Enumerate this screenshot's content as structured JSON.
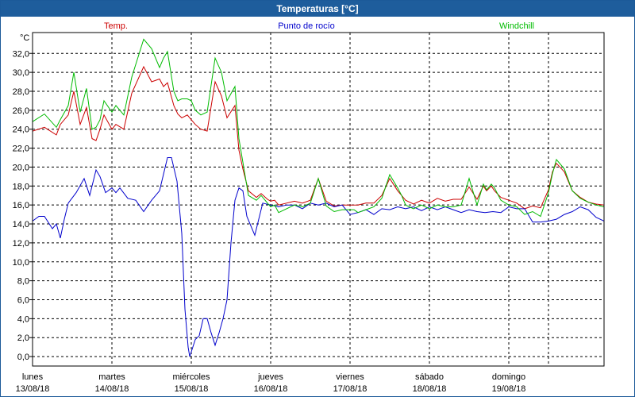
{
  "window": {
    "title": "Temperaturas [°C]"
  },
  "chart_data": {
    "type": "line",
    "title": "Temperaturas [°C]",
    "ylabel": "°C",
    "ylim": [
      -1,
      34.2
    ],
    "xlim": [
      0,
      7.2
    ],
    "y_ticks": [
      "32,0",
      "30,0",
      "28,0",
      "26,0",
      "24,0",
      "22,0",
      "20,0",
      "18,0",
      "16,0",
      "14,0",
      "12,0",
      "10,0",
      "8,0",
      "6,0",
      "4,0",
      "2,0",
      "0,0"
    ],
    "y_tick_values": [
      32,
      30,
      28,
      26,
      24,
      22,
      20,
      18,
      16,
      14,
      12,
      10,
      8,
      6,
      4,
      2,
      0
    ],
    "x_tick_positions": [
      0,
      1,
      2,
      3,
      4,
      5,
      6
    ],
    "x_ticks": [
      {
        "day": "lunes",
        "date": "13/08/18"
      },
      {
        "day": "martes",
        "date": "14/08/18"
      },
      {
        "day": "miércoles",
        "date": "15/08/18"
      },
      {
        "day": "jueves",
        "date": "16/08/18"
      },
      {
        "day": "viernes",
        "date": "17/08/18"
      },
      {
        "day": "sábado",
        "date": "18/08/18"
      },
      {
        "day": "domingo",
        "date": "19/08/18"
      }
    ],
    "grid": true,
    "legend": {
      "placement": "top"
    },
    "series": [
      {
        "name": "Temp.",
        "color": "#cc0000",
        "x": [
          0,
          0.15,
          0.3,
          0.35,
          0.45,
          0.52,
          0.6,
          0.68,
          0.75,
          0.8,
          0.85,
          0.9,
          1.0,
          1.05,
          1.15,
          1.25,
          1.4,
          1.5,
          1.6,
          1.65,
          1.7,
          1.78,
          1.83,
          1.88,
          1.95,
          2.0,
          2.05,
          2.12,
          2.2,
          2.3,
          2.38,
          2.45,
          2.55,
          2.6,
          2.65,
          2.72,
          2.82,
          2.88,
          2.96,
          3.0,
          3.05,
          3.1,
          3.2,
          3.3,
          3.4,
          3.5,
          3.6,
          3.7,
          3.8,
          3.9,
          4.0,
          4.05,
          4.1,
          4.2,
          4.3,
          4.4,
          4.5,
          4.6,
          4.65,
          4.7,
          4.8,
          4.9,
          5.0,
          5.1,
          5.2,
          5.3,
          5.4,
          5.5,
          5.6,
          5.68,
          5.72,
          5.78,
          5.82,
          5.9,
          6.0,
          6.1,
          6.2,
          6.3,
          6.4,
          6.5,
          6.55,
          6.6,
          6.7,
          6.8,
          6.9,
          7.0,
          7.1,
          7.2
        ],
        "values": [
          23.8,
          24.2,
          23.4,
          24.5,
          25.5,
          28.0,
          24.5,
          26.3,
          23.0,
          22.8,
          24.0,
          25.5,
          24.0,
          24.5,
          24.0,
          27.8,
          30.6,
          29.0,
          29.3,
          28.5,
          28.9,
          26.5,
          25.6,
          25.2,
          25.5,
          25.0,
          24.5,
          24.0,
          23.8,
          29.0,
          27.5,
          25.2,
          26.5,
          21.8,
          19.8,
          17.5,
          16.8,
          17.2,
          16.6,
          16.4,
          16.5,
          16.0,
          16.2,
          16.4,
          16.2,
          16.5,
          18.8,
          16.4,
          15.9,
          16.0,
          16.0,
          16.0,
          16.0,
          16.2,
          16.2,
          17.0,
          18.8,
          17.5,
          17.0,
          16.5,
          16.1,
          16.5,
          16.2,
          16.7,
          16.4,
          16.6,
          16.6,
          17.9,
          16.6,
          18.0,
          17.5,
          18.0,
          17.5,
          16.8,
          16.5,
          16.2,
          15.6,
          15.9,
          15.7,
          17.6,
          19.5,
          20.4,
          19.5,
          17.5,
          16.8,
          16.3,
          16.1,
          16.0
        ]
      },
      {
        "name": "Punto de rocío",
        "color": "#0000cc",
        "x": [
          0,
          0.08,
          0.15,
          0.25,
          0.3,
          0.35,
          0.4,
          0.45,
          0.55,
          0.65,
          0.72,
          0.8,
          0.85,
          0.92,
          1.0,
          1.05,
          1.1,
          1.2,
          1.3,
          1.4,
          1.5,
          1.6,
          1.7,
          1.75,
          1.82,
          1.88,
          1.92,
          1.96,
          1.98,
          2.0,
          2.05,
          2.1,
          2.15,
          2.2,
          2.25,
          2.3,
          2.35,
          2.4,
          2.45,
          2.5,
          2.55,
          2.6,
          2.65,
          2.7,
          2.8,
          2.9,
          3.0,
          3.1,
          3.2,
          3.3,
          3.4,
          3.5,
          3.6,
          3.7,
          3.8,
          3.9,
          4.0,
          4.1,
          4.2,
          4.3,
          4.4,
          4.5,
          4.6,
          4.7,
          4.8,
          4.9,
          5.0,
          5.1,
          5.2,
          5.3,
          5.4,
          5.5,
          5.6,
          5.7,
          5.8,
          5.9,
          6.0,
          6.1,
          6.2,
          6.3,
          6.4,
          6.5,
          6.6,
          6.7,
          6.8,
          6.9,
          7.0,
          7.1,
          7.2
        ],
        "values": [
          14.3,
          14.8,
          14.8,
          13.5,
          14.0,
          12.5,
          14.5,
          16.2,
          17.3,
          18.8,
          17.0,
          19.7,
          19.0,
          17.3,
          17.8,
          17.3,
          17.8,
          16.7,
          16.5,
          15.3,
          16.5,
          17.5,
          21.0,
          21.0,
          18.5,
          13.0,
          5.0,
          1.0,
          0.0,
          0.5,
          1.8,
          2.2,
          4.0,
          4.0,
          2.5,
          1.2,
          2.5,
          4.0,
          6.0,
          12.0,
          16.5,
          17.8,
          17.5,
          14.8,
          12.8,
          16.2,
          16.0,
          15.8,
          16.0,
          16.0,
          15.6,
          16.2,
          16.0,
          16.2,
          15.8,
          16.0,
          15.0,
          15.2,
          15.5,
          15.0,
          15.6,
          15.5,
          15.8,
          15.6,
          15.8,
          15.4,
          15.8,
          15.5,
          15.8,
          15.5,
          15.2,
          15.5,
          15.3,
          15.2,
          15.3,
          15.2,
          15.8,
          15.6,
          15.6,
          14.2,
          14.2,
          14.3,
          14.5,
          15.0,
          15.3,
          15.8,
          15.5,
          14.7,
          14.3
        ]
      },
      {
        "name": "Windchill",
        "color": "#00bb00",
        "x": [
          0,
          0.15,
          0.3,
          0.35,
          0.45,
          0.52,
          0.6,
          0.68,
          0.75,
          0.8,
          0.85,
          0.9,
          1.0,
          1.05,
          1.15,
          1.25,
          1.4,
          1.5,
          1.6,
          1.65,
          1.7,
          1.78,
          1.83,
          1.88,
          1.95,
          2.0,
          2.05,
          2.12,
          2.2,
          2.3,
          2.38,
          2.45,
          2.55,
          2.6,
          2.65,
          2.72,
          2.82,
          2.88,
          2.96,
          3.0,
          3.05,
          3.1,
          3.2,
          3.3,
          3.4,
          3.5,
          3.6,
          3.7,
          3.8,
          3.9,
          4.0,
          4.05,
          4.1,
          4.2,
          4.3,
          4.4,
          4.5,
          4.6,
          4.65,
          4.7,
          4.8,
          4.9,
          5.0,
          5.1,
          5.2,
          5.3,
          5.4,
          5.5,
          5.6,
          5.68,
          5.72,
          5.78,
          5.82,
          5.9,
          6.0,
          6.1,
          6.2,
          6.3,
          6.4,
          6.5,
          6.55,
          6.6,
          6.7,
          6.8,
          6.9,
          7.0,
          7.1,
          7.2
        ],
        "values": [
          24.8,
          25.6,
          24.2,
          25.0,
          26.5,
          30.0,
          25.8,
          28.3,
          24.0,
          24.2,
          25.0,
          27.0,
          25.8,
          26.5,
          25.5,
          29.5,
          33.5,
          32.5,
          30.5,
          31.5,
          32.2,
          28.0,
          27.0,
          27.2,
          27.2,
          27.0,
          26.0,
          25.5,
          25.8,
          31.5,
          30.0,
          27.0,
          28.5,
          23.0,
          20.5,
          17.0,
          16.5,
          17.0,
          16.2,
          15.8,
          16.0,
          15.2,
          15.6,
          16.0,
          15.8,
          16.2,
          18.8,
          15.9,
          15.3,
          15.5,
          15.5,
          15.5,
          15.2,
          15.5,
          15.8,
          16.7,
          19.2,
          17.8,
          17.0,
          16.0,
          15.6,
          16.0,
          15.6,
          16.0,
          15.8,
          15.8,
          16.0,
          18.8,
          16.0,
          18.2,
          17.6,
          18.2,
          17.8,
          16.5,
          16.0,
          15.8,
          15.0,
          15.3,
          14.8,
          17.3,
          19.3,
          20.8,
          19.8,
          17.5,
          16.7,
          16.3,
          16.0,
          15.8
        ]
      }
    ]
  }
}
